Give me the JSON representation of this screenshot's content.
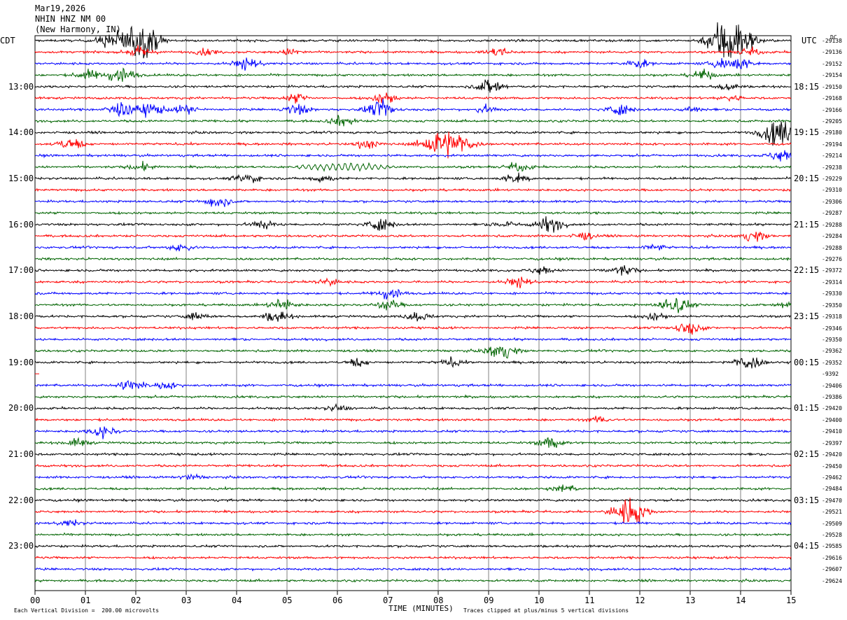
{
  "header": {
    "date": "Mar19,2026",
    "station": "NHIN HNZ NM 00",
    "location": "(New Harmony, IN)",
    "left_zone": "CDT",
    "right_zone": "UTC",
    "dc_label": "DC"
  },
  "footer": {
    "scale_note": "Each Vertical Division =  200.00 microvolts",
    "xlabel": "TIME (MINUTES)",
    "clip_note": "Traces clipped at plus/minus 5 vertical divisions"
  },
  "chart_data": {
    "type": "line",
    "title": "",
    "xlabel": "TIME (MINUTES)",
    "xlim": [
      0,
      15
    ],
    "x_ticks": [
      "00",
      "01",
      "02",
      "03",
      "04",
      "05",
      "06",
      "07",
      "08",
      "09",
      "10",
      "11",
      "12",
      "13",
      "14",
      "15"
    ],
    "trace_minutes": 15,
    "trace_colors": [
      "#000000",
      "#ff0000",
      "#0000ff",
      "#006400"
    ],
    "left_time_labels": [
      "13:00",
      "14:00",
      "15:00",
      "16:00",
      "17:00",
      "18:00",
      "19:00",
      "20:00",
      "21:00",
      "22:00",
      "23:00"
    ],
    "right_time_labels": [
      "18:15",
      "19:15",
      "20:15",
      "21:15",
      "22:15",
      "23:15",
      "00:15",
      "01:15",
      "02:15",
      "03:15",
      "04:15"
    ],
    "dc_offsets": [
      "-29138",
      "-29136",
      "-29152",
      "-29154",
      "-29150",
      "-29168",
      "-29166",
      "-29205",
      "-29180",
      "-29194",
      "-29214",
      "-29238",
      "-29229",
      "-29310",
      "-29306",
      "-29287",
      "-29288",
      "-29284",
      "-29288",
      "-29276",
      "-29372",
      "-29314",
      "-29330",
      "-29350",
      "-29318",
      "-29346",
      "-29350",
      "-29362",
      "-29352",
      "-9392",
      "-29406",
      "-29386",
      "-29420",
      "-29400",
      "-29410",
      "-29397",
      "-29420",
      "-29450",
      "-29462",
      "-29484",
      "-29470",
      "-29521",
      "-29509",
      "-29528",
      "-29585",
      "-29616",
      "-29607",
      "-29624"
    ],
    "missing_traces": [
      29
    ],
    "events": [
      {
        "trace": 0,
        "minute": 1.45,
        "amp": 1.6
      },
      {
        "trace": 0,
        "minute": 2.05,
        "amp": 5.0
      },
      {
        "trace": 0,
        "minute": 13.65,
        "amp": 3.0
      },
      {
        "trace": 0,
        "minute": 13.85,
        "amp": 5.0
      },
      {
        "trace": 1,
        "minute": 2.1,
        "amp": 1.4
      },
      {
        "trace": 1,
        "minute": 3.4,
        "amp": 0.8
      },
      {
        "trace": 1,
        "minute": 5.1,
        "amp": 0.9
      },
      {
        "trace": 1,
        "minute": 9.2,
        "amp": 1.2
      },
      {
        "trace": 1,
        "minute": 14.2,
        "amp": 1.0
      },
      {
        "trace": 2,
        "minute": 4.2,
        "amp": 1.6
      },
      {
        "trace": 2,
        "minute": 11.95,
        "amp": 1.2
      },
      {
        "trace": 2,
        "minute": 13.6,
        "amp": 1.0
      },
      {
        "trace": 2,
        "minute": 13.95,
        "amp": 1.8
      },
      {
        "trace": 3,
        "minute": 1.05,
        "amp": 1.3
      },
      {
        "trace": 3,
        "minute": 1.7,
        "amp": 2.2
      },
      {
        "trace": 3,
        "minute": 13.25,
        "amp": 1.3
      },
      {
        "trace": 4,
        "minute": 9.05,
        "amp": 2.2
      },
      {
        "trace": 4,
        "minute": 13.75,
        "amp": 1.0
      },
      {
        "trace": 5,
        "minute": 5.2,
        "amp": 1.2
      },
      {
        "trace": 5,
        "minute": 6.95,
        "amp": 1.5
      },
      {
        "trace": 5,
        "minute": 13.8,
        "amp": 0.8
      },
      {
        "trace": 6,
        "minute": 1.7,
        "amp": 2.0
      },
      {
        "trace": 6,
        "minute": 2.3,
        "amp": 1.8
      },
      {
        "trace": 6,
        "minute": 3.0,
        "amp": 1.2
      },
      {
        "trace": 6,
        "minute": 5.2,
        "amp": 1.4
      },
      {
        "trace": 6,
        "minute": 6.85,
        "amp": 2.2
      },
      {
        "trace": 6,
        "minute": 8.95,
        "amp": 1.0
      },
      {
        "trace": 6,
        "minute": 11.6,
        "amp": 1.4
      },
      {
        "trace": 6,
        "minute": 13.0,
        "amp": 1.0
      },
      {
        "trace": 7,
        "minute": 6.1,
        "amp": 1.4
      },
      {
        "trace": 8,
        "minute": 14.75,
        "amp": 3.5
      },
      {
        "trace": 9,
        "minute": 0.7,
        "amp": 1.6
      },
      {
        "trace": 9,
        "minute": 6.6,
        "amp": 1.2
      },
      {
        "trace": 9,
        "minute": 8.05,
        "amp": 4.0
      },
      {
        "trace": 9,
        "minute": 8.5,
        "amp": 1.8
      },
      {
        "trace": 10,
        "minute": 14.8,
        "amp": 1.5
      },
      {
        "trace": 11,
        "minute": 2.1,
        "amp": 1.0
      },
      {
        "trace": 11,
        "minute": 9.6,
        "amp": 1.2
      },
      {
        "trace": 12,
        "minute": 4.2,
        "amp": 1.4
      },
      {
        "trace": 12,
        "minute": 5.7,
        "amp": 1.0
      },
      {
        "trace": 12,
        "minute": 9.55,
        "amp": 1.4
      },
      {
        "trace": 14,
        "minute": 3.6,
        "amp": 1.6
      },
      {
        "trace": 16,
        "minute": 4.5,
        "amp": 1.2
      },
      {
        "trace": 16,
        "minute": 6.85,
        "amp": 1.6
      },
      {
        "trace": 16,
        "minute": 9.3,
        "amp": 1.0
      },
      {
        "trace": 16,
        "minute": 10.2,
        "amp": 2.0
      },
      {
        "trace": 17,
        "minute": 10.9,
        "amp": 1.0
      },
      {
        "trace": 17,
        "minute": 14.25,
        "amp": 1.4
      },
      {
        "trace": 18,
        "minute": 2.9,
        "amp": 1.0
      },
      {
        "trace": 18,
        "minute": 12.3,
        "amp": 0.8
      },
      {
        "trace": 20,
        "minute": 10.05,
        "amp": 1.0
      },
      {
        "trace": 20,
        "minute": 11.65,
        "amp": 1.4
      },
      {
        "trace": 21,
        "minute": 5.8,
        "amp": 1.0
      },
      {
        "trace": 21,
        "minute": 9.6,
        "amp": 1.4
      },
      {
        "trace": 22,
        "minute": 7.05,
        "amp": 1.6
      },
      {
        "trace": 23,
        "minute": 4.9,
        "amp": 1.6
      },
      {
        "trace": 23,
        "minute": 7.0,
        "amp": 1.4
      },
      {
        "trace": 23,
        "minute": 12.7,
        "amp": 2.4
      },
      {
        "trace": 23,
        "minute": 14.95,
        "amp": 1.4
      },
      {
        "trace": 24,
        "minute": 3.2,
        "amp": 1.0
      },
      {
        "trace": 24,
        "minute": 4.8,
        "amp": 1.6
      },
      {
        "trace": 24,
        "minute": 7.6,
        "amp": 1.2
      },
      {
        "trace": 24,
        "minute": 12.3,
        "amp": 1.0
      },
      {
        "trace": 25,
        "minute": 12.95,
        "amp": 1.8
      },
      {
        "trace": 27,
        "minute": 9.25,
        "amp": 2.2
      },
      {
        "trace": 28,
        "minute": 6.4,
        "amp": 1.0
      },
      {
        "trace": 28,
        "minute": 8.25,
        "amp": 1.0
      },
      {
        "trace": 28,
        "minute": 14.15,
        "amp": 2.0
      },
      {
        "trace": 30,
        "minute": 1.9,
        "amp": 1.6
      },
      {
        "trace": 30,
        "minute": 2.6,
        "amp": 0.9
      },
      {
        "trace": 32,
        "minute": 6.0,
        "amp": 0.8
      },
      {
        "trace": 33,
        "minute": 11.2,
        "amp": 0.8
      },
      {
        "trace": 34,
        "minute": 1.35,
        "amp": 1.6
      },
      {
        "trace": 35,
        "minute": 0.85,
        "amp": 1.0
      },
      {
        "trace": 35,
        "minute": 10.25,
        "amp": 1.6
      },
      {
        "trace": 38,
        "minute": 3.1,
        "amp": 0.7
      },
      {
        "trace": 39,
        "minute": 10.5,
        "amp": 1.0
      },
      {
        "trace": 41,
        "minute": 11.8,
        "amp": 3.5
      },
      {
        "trace": 42,
        "minute": 0.7,
        "amp": 0.8
      }
    ],
    "wave_packet": {
      "trace": 11,
      "start_minute": 4.95,
      "end_minute": 7.4,
      "amp": 0.9,
      "period_minute": 0.12
    }
  }
}
